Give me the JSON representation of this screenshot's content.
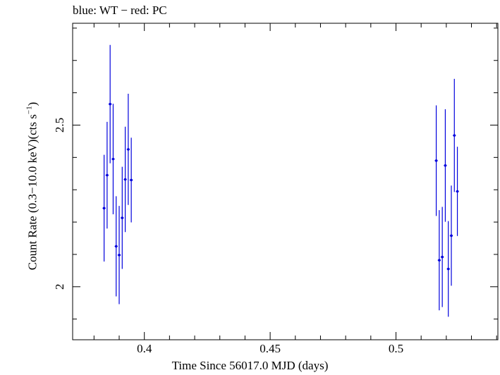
{
  "chart_data": {
    "type": "scatter",
    "title": "blue: WT − red: PC",
    "xlabel": "Time Since 56017.0 MJD (days)",
    "ylabel": {
      "prefix": "Count Rate (0.3−10.0 keV)(cts s",
      "sup": "−1",
      "suffix": ")"
    },
    "xlim": [
      0.3715,
      0.5405
    ],
    "ylim": [
      1.836,
      2.815
    ],
    "x_ticks_major": [
      0.4,
      0.45,
      0.5
    ],
    "x_tick_labels": [
      "0.4",
      "0.45",
      "0.5"
    ],
    "y_ticks_major": [
      2.0,
      2.5
    ],
    "y_tick_labels": [
      "2",
      "2.5"
    ],
    "grid": false,
    "series": [
      {
        "name": "WT",
        "color": "#0000dd",
        "points": [
          {
            "x": 0.384,
            "xerr": 0.0006,
            "y": 2.243,
            "yerr": 0.165
          },
          {
            "x": 0.3852,
            "xerr": 0.0006,
            "y": 2.345,
            "yerr": 0.165
          },
          {
            "x": 0.3864,
            "xerr": 0.0006,
            "y": 2.565,
            "yerr": 0.183
          },
          {
            "x": 0.3876,
            "xerr": 0.0006,
            "y": 2.395,
            "yerr": 0.171
          },
          {
            "x": 0.3888,
            "xerr": 0.0006,
            "y": 2.125,
            "yerr": 0.155
          },
          {
            "x": 0.39,
            "xerr": 0.0006,
            "y": 2.098,
            "yerr": 0.152
          },
          {
            "x": 0.3912,
            "xerr": 0.0006,
            "y": 2.213,
            "yerr": 0.158
          },
          {
            "x": 0.3924,
            "xerr": 0.0006,
            "y": 2.332,
            "yerr": 0.163
          },
          {
            "x": 0.3936,
            "xerr": 0.0006,
            "y": 2.425,
            "yerr": 0.172
          },
          {
            "x": 0.3948,
            "xerr": 0.0006,
            "y": 2.33,
            "yerr": 0.131
          },
          {
            "x": 0.516,
            "xerr": 0.0006,
            "y": 2.39,
            "yerr": 0.171
          },
          {
            "x": 0.5172,
            "xerr": 0.0006,
            "y": 2.082,
            "yerr": 0.155
          },
          {
            "x": 0.5184,
            "xerr": 0.0006,
            "y": 2.092,
            "yerr": 0.155
          },
          {
            "x": 0.5196,
            "xerr": 0.0006,
            "y": 2.375,
            "yerr": 0.174
          },
          {
            "x": 0.5208,
            "xerr": 0.0006,
            "y": 2.055,
            "yerr": 0.148
          },
          {
            "x": 0.522,
            "xerr": 0.0006,
            "y": 2.158,
            "yerr": 0.155
          },
          {
            "x": 0.5232,
            "xerr": 0.0006,
            "y": 2.468,
            "yerr": 0.175
          },
          {
            "x": 0.5244,
            "xerr": 0.0006,
            "y": 2.295,
            "yerr": 0.138
          }
        ]
      }
    ]
  }
}
